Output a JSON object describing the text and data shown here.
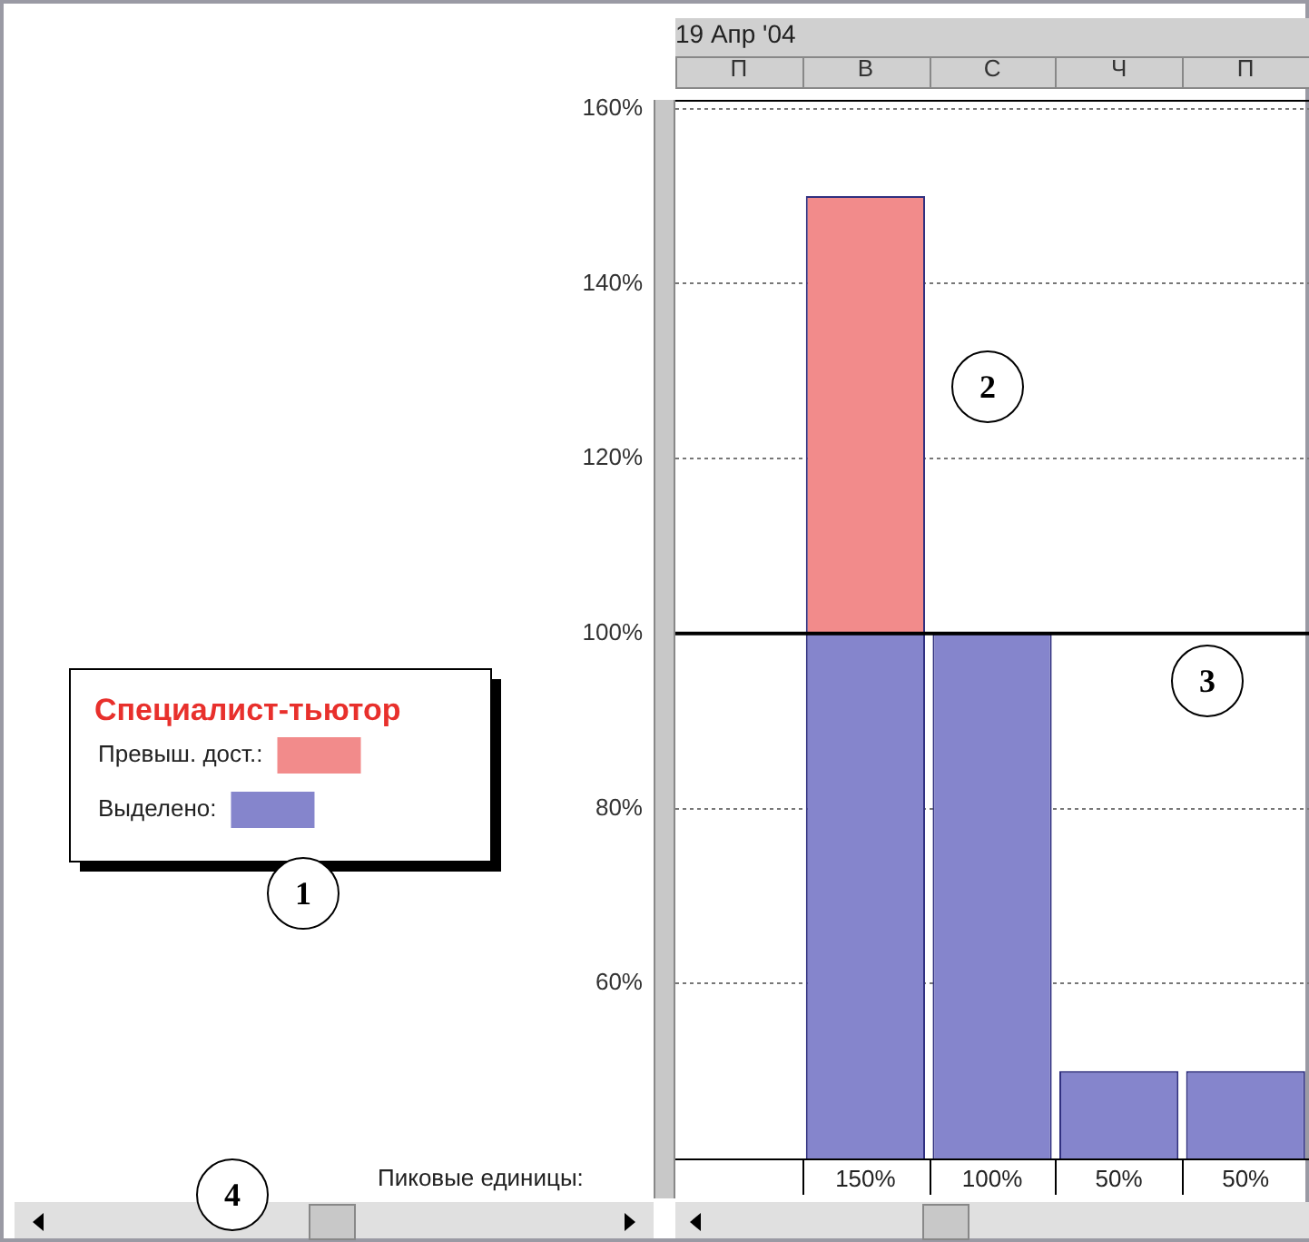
{
  "chart_data": {
    "type": "bar",
    "xlabel": "19 Апр '04",
    "legend_title": "Специалист-тьютор",
    "categories": [
      "П",
      "В",
      "С",
      "Ч",
      "П"
    ],
    "stacked": true,
    "series": [
      {
        "name": "Выделено:",
        "color": "#8585cc",
        "values": [
          null,
          100,
          100,
          50,
          50
        ]
      },
      {
        "name": "Превыш. дост.:",
        "color": "#f28b8b",
        "values": [
          null,
          50,
          null,
          null,
          null
        ]
      }
    ],
    "ylim": [
      40,
      161
    ],
    "yticks": [
      {
        "value": 60,
        "label": "60%"
      },
      {
        "value": 80,
        "label": "80%"
      },
      {
        "value": 100,
        "label": "100%"
      },
      {
        "value": 120,
        "label": "120%"
      },
      {
        "value": 140,
        "label": "140%"
      },
      {
        "value": 160,
        "label": "160%"
      }
    ],
    "grid": "y",
    "legend": "left",
    "ref_lines": [
      {
        "axis": "y",
        "value": 100,
        "color": "#000000"
      }
    ],
    "totals": [
      null,
      "150%",
      "100%",
      "50%",
      "50%"
    ],
    "annotations": [
      "Пиковые единицы:",
      "1",
      "2",
      "3",
      "4"
    ]
  }
}
